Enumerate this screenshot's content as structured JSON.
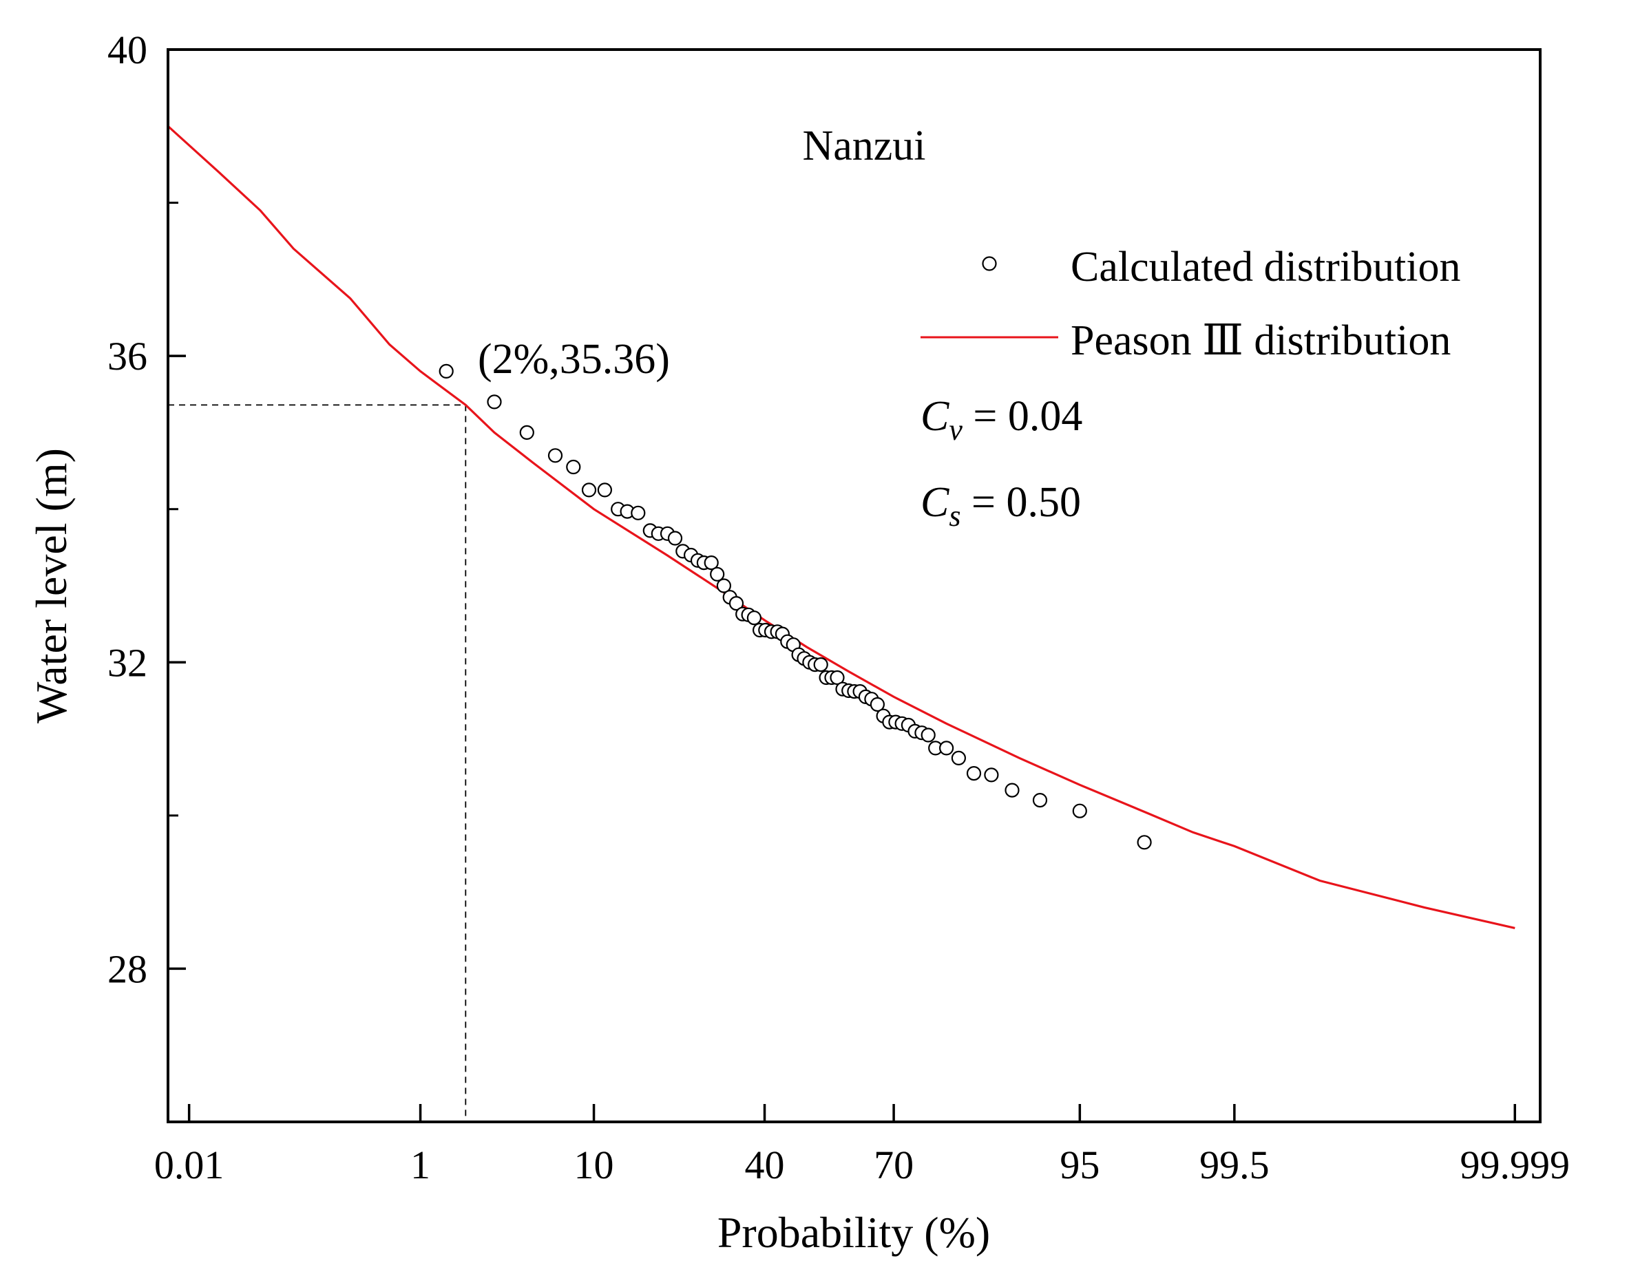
{
  "chart_data": {
    "type": "scatter",
    "title": "Nanzui",
    "xlabel": "Probability (%)",
    "ylabel": "Water level (m)",
    "x_scale": "normal-probability",
    "xlim_percent": [
      0.006,
      99.9995
    ],
    "ylim": [
      26,
      40
    ],
    "x_ticks": [
      {
        "label": "0.01",
        "value": 0.01
      },
      {
        "label": "1",
        "value": 1
      },
      {
        "label": "10",
        "value": 10
      },
      {
        "label": "40",
        "value": 40
      },
      {
        "label": "70",
        "value": 70
      },
      {
        "label": "95",
        "value": 95
      },
      {
        "label": "99.5",
        "value": 99.5
      },
      {
        "label": "99.999",
        "value": 99.999
      }
    ],
    "y_ticks": [
      {
        "label": "40",
        "value": 40
      },
      {
        "label": "36",
        "value": 36
      },
      {
        "label": "32",
        "value": 32
      },
      {
        "label": "28",
        "value": 28
      }
    ],
    "y_minor_ticks": [
      38,
      34,
      30
    ],
    "legend": [
      {
        "name": "Calculated distribution",
        "marker": "open-circle"
      },
      {
        "name": "Peason Ⅲ distribution",
        "marker": "line",
        "color": "#e8141b"
      }
    ],
    "parameters": {
      "cv": {
        "symbol": "C",
        "sub": "v",
        "text": " = 0.04"
      },
      "cs": {
        "symbol": "C",
        "sub": "s",
        "text": " = 0.50"
      }
    },
    "annotation": {
      "text": "(2%,35.36)",
      "x": 2,
      "y": 35.36
    },
    "series": [
      {
        "name": "Peason Ⅲ distribution",
        "kind": "line",
        "color": "#e8141b",
        "points": [
          [
            0.006,
            39.0
          ],
          [
            0.02,
            38.4
          ],
          [
            0.05,
            37.9
          ],
          [
            0.1,
            37.4
          ],
          [
            0.3,
            36.75
          ],
          [
            0.6,
            36.15
          ],
          [
            1,
            35.8
          ],
          [
            2,
            35.36
          ],
          [
            3,
            35.0
          ],
          [
            5,
            34.6
          ],
          [
            10,
            34.0
          ],
          [
            20,
            33.4
          ],
          [
            30,
            32.95
          ],
          [
            40,
            32.55
          ],
          [
            50,
            32.2
          ],
          [
            60,
            31.88
          ],
          [
            70,
            31.55
          ],
          [
            80,
            31.2
          ],
          [
            90,
            30.75
          ],
          [
            95,
            30.4
          ],
          [
            98,
            30.03
          ],
          [
            99,
            29.78
          ],
          [
            99.5,
            29.6
          ],
          [
            99.9,
            29.15
          ],
          [
            99.99,
            28.8
          ],
          [
            99.999,
            28.53
          ]
        ]
      },
      {
        "name": "Calculated distribution",
        "kind": "scatter",
        "points": [
          [
            1.5,
            35.8
          ],
          [
            3.0,
            35.4
          ],
          [
            4.6,
            35.0
          ],
          [
            6.5,
            34.7
          ],
          [
            8.0,
            34.55
          ],
          [
            9.5,
            34.25
          ],
          [
            11.2,
            34.25
          ],
          [
            12.8,
            34.0
          ],
          [
            14.0,
            33.97
          ],
          [
            15.5,
            33.95
          ],
          [
            17.3,
            33.72
          ],
          [
            18.6,
            33.68
          ],
          [
            20.1,
            33.68
          ],
          [
            21.4,
            33.62
          ],
          [
            22.8,
            33.45
          ],
          [
            24.3,
            33.4
          ],
          [
            25.6,
            33.33
          ],
          [
            26.8,
            33.3
          ],
          [
            28.3,
            33.3
          ],
          [
            29.5,
            33.15
          ],
          [
            30.9,
            33.0
          ],
          [
            32.2,
            32.85
          ],
          [
            33.6,
            32.77
          ],
          [
            35.0,
            32.63
          ],
          [
            36.3,
            32.62
          ],
          [
            37.6,
            32.58
          ],
          [
            38.9,
            32.42
          ],
          [
            40.2,
            32.42
          ],
          [
            41.6,
            32.4
          ],
          [
            43.0,
            32.4
          ],
          [
            44.2,
            32.37
          ],
          [
            45.4,
            32.27
          ],
          [
            46.8,
            32.23
          ],
          [
            48.1,
            32.1
          ],
          [
            49.4,
            32.05
          ],
          [
            50.7,
            32.0
          ],
          [
            52.0,
            31.97
          ],
          [
            53.4,
            31.97
          ],
          [
            54.7,
            31.8
          ],
          [
            56.0,
            31.8
          ],
          [
            57.3,
            31.8
          ],
          [
            58.6,
            31.65
          ],
          [
            60.0,
            31.63
          ],
          [
            61.3,
            31.62
          ],
          [
            62.6,
            31.62
          ],
          [
            63.9,
            31.55
          ],
          [
            65.2,
            31.52
          ],
          [
            66.5,
            31.45
          ],
          [
            67.8,
            31.3
          ],
          [
            69.1,
            31.22
          ],
          [
            70.4,
            31.22
          ],
          [
            71.7,
            31.2
          ],
          [
            73.0,
            31.18
          ],
          [
            74.3,
            31.1
          ],
          [
            75.6,
            31.08
          ],
          [
            76.8,
            31.05
          ],
          [
            78.1,
            30.88
          ],
          [
            80.0,
            30.88
          ],
          [
            82.0,
            30.75
          ],
          [
            84.3,
            30.55
          ],
          [
            86.7,
            30.53
          ],
          [
            89.2,
            30.33
          ],
          [
            92.0,
            30.2
          ],
          [
            95.0,
            30.06
          ],
          [
            97.9,
            29.65
          ]
        ]
      }
    ]
  }
}
